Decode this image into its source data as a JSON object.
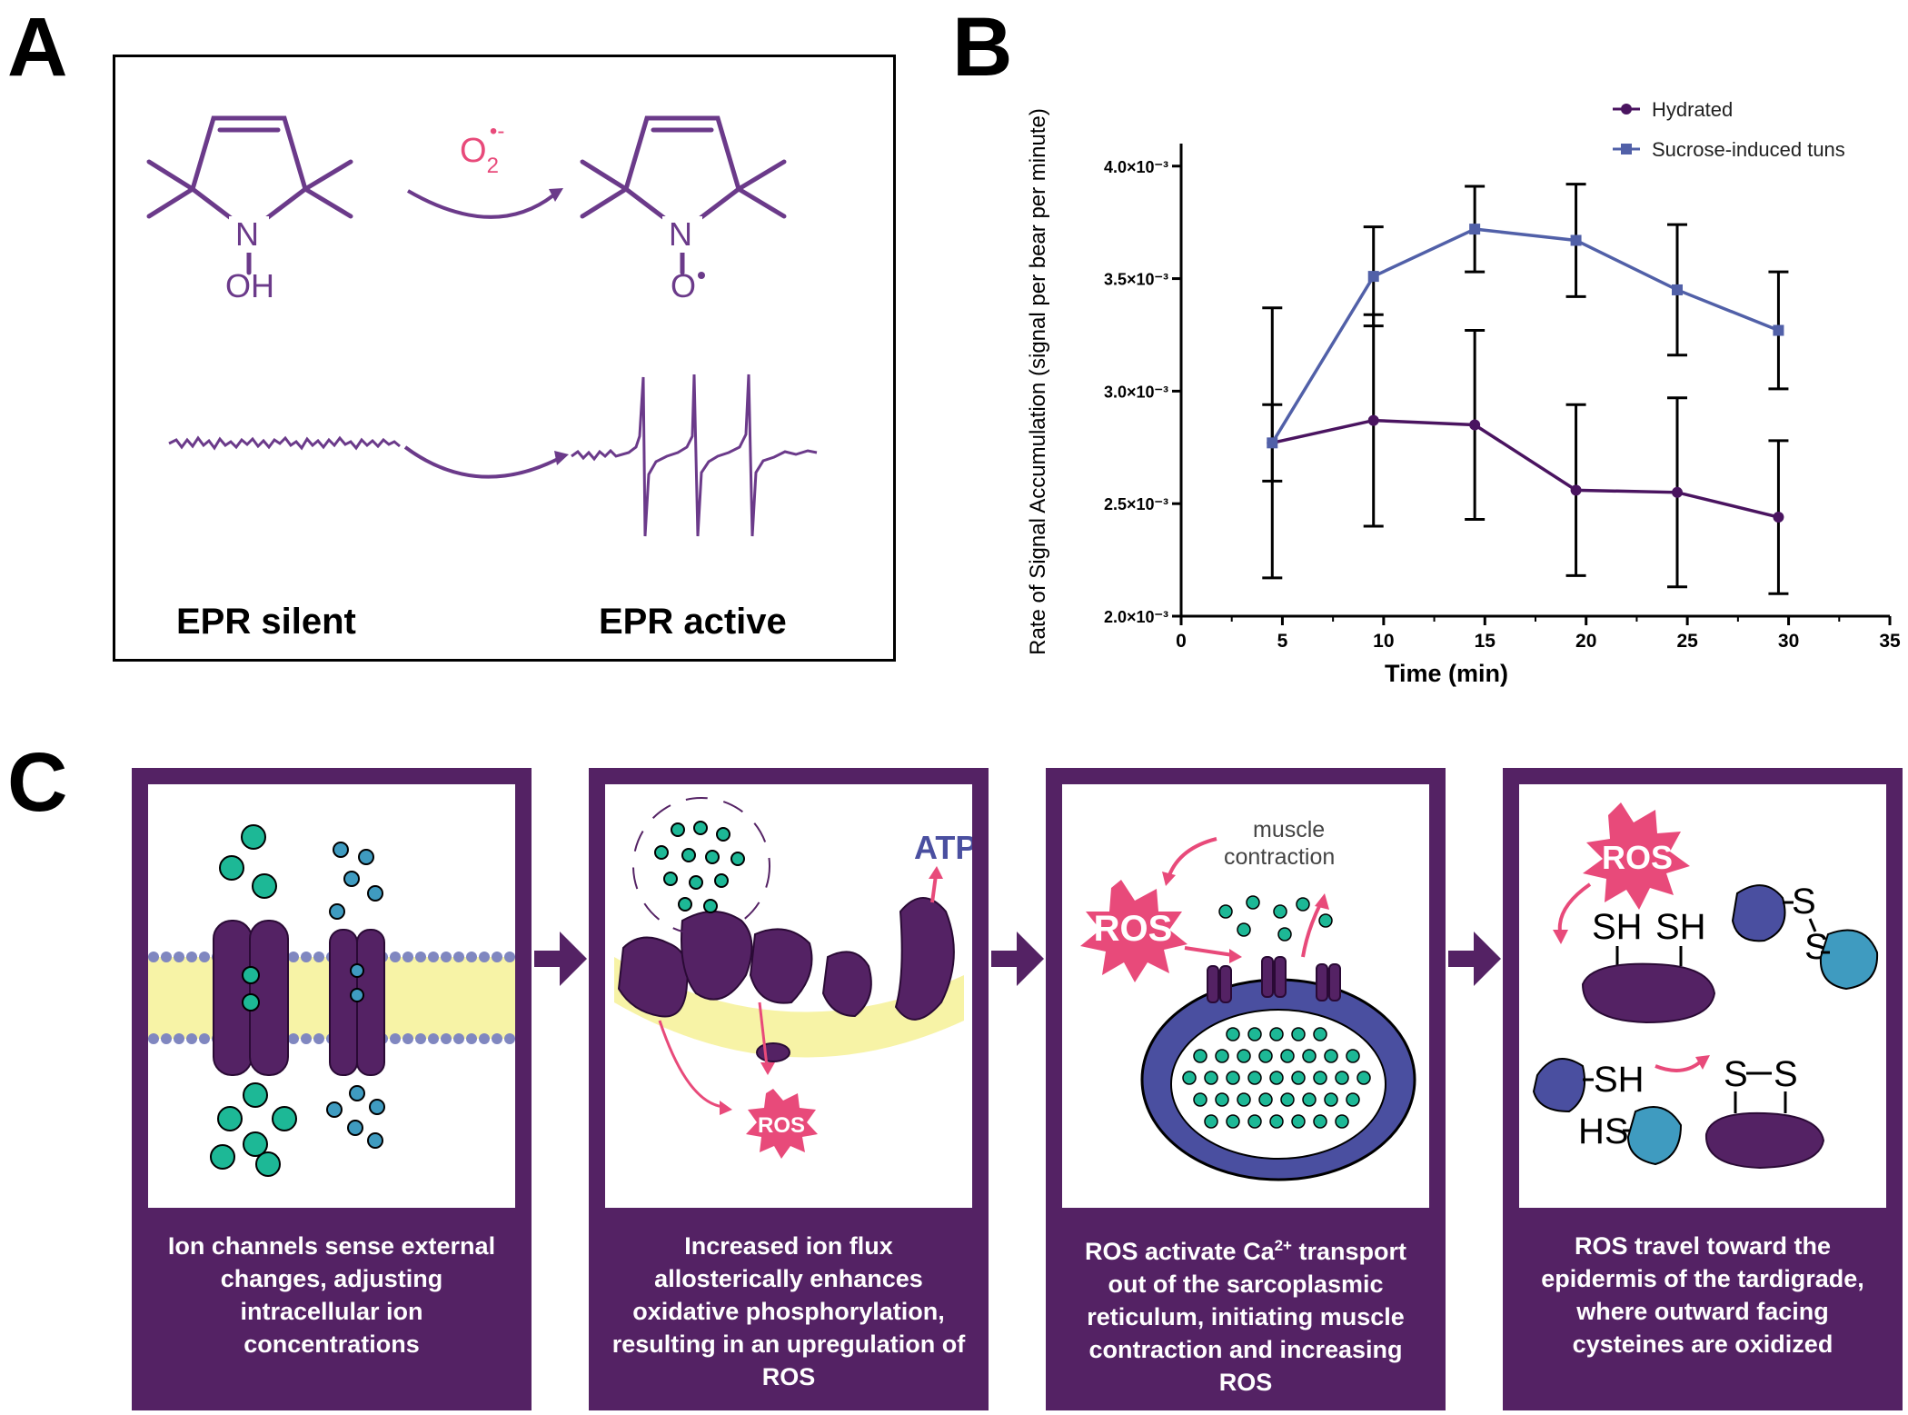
{
  "panels": {
    "a": "A",
    "b": "B",
    "c": "C"
  },
  "panel_a": {
    "oxidant_main": "O",
    "oxidant_sub": "2",
    "oxidant_sup": "•-",
    "left_n": "N",
    "left_oh": "OH",
    "right_n": "N",
    "right_o": "O",
    "label_silent": "EPR silent",
    "label_active": "EPR active"
  },
  "chart_data": {
    "type": "line",
    "title": "",
    "xlabel": "Time (min)",
    "ylabel": "Rate of Signal Accumulation (signal per bear per minute)",
    "xlim": [
      0,
      35
    ],
    "ylim": [
      0.002,
      0.0041
    ],
    "x_ticks": [
      "0",
      "5",
      "10",
      "15",
      "20",
      "25",
      "30",
      "35"
    ],
    "y_ticks": [
      "2.0×10⁻³",
      "2.5×10⁻³",
      "3.0×10⁻³",
      "3.5×10⁻³",
      "4.0×10⁻³"
    ],
    "legend_position": "top-right",
    "series": [
      {
        "name": "Hydrated",
        "color": "#4a1460",
        "marker": "circle",
        "x": [
          4.5,
          9.5,
          14.5,
          19.5,
          24.5,
          29.5
        ],
        "values": [
          0.00277,
          0.00287,
          0.00285,
          0.00256,
          0.00255,
          0.00244
        ],
        "error": [
          0.0006,
          0.00047,
          0.00042,
          0.00038,
          0.00042,
          0.00034
        ]
      },
      {
        "name": "Sucrose-induced tuns",
        "color": "#5160a8",
        "marker": "square",
        "x": [
          4.5,
          9.5,
          14.5,
          19.5,
          24.5,
          29.5
        ],
        "values": [
          0.00277,
          0.00351,
          0.00372,
          0.00367,
          0.00345,
          0.00327
        ],
        "error": [
          0.00017,
          0.00022,
          0.00019,
          0.00025,
          0.00029,
          0.00026
        ]
      }
    ]
  },
  "panel_c": {
    "ros": "ROS",
    "atp": "ATP",
    "muscle_contraction_1": "muscle",
    "muscle_contraction_2": "contraction",
    "sh": "SH",
    "hs": "HS",
    "s": "S",
    "steps": [
      {
        "caption": "Ion channels sense external changes, adjusting intracellular ion concentrations"
      },
      {
        "caption": "Increased ion flux allosterically enhances oxidative phosphorylation, resulting in an upregulation of ROS"
      },
      {
        "caption_pre": "ROS activate Ca",
        "caption_sup": "2+",
        "caption_post": " transport out of the sarcoplasmic reticulum, initiating muscle contraction and increasing ROS"
      },
      {
        "caption": "ROS travel toward the epidermis of the tardigrade, where outward facing cysteines are oxidized"
      }
    ]
  },
  "colors": {
    "purple_dark": "#542264",
    "purple_mol": "#6b3a8a",
    "teal": "#1db896",
    "blue_ion": "#3f9bc0",
    "ros_pink": "#e84a7a",
    "membrane_yellow": "#f7f3a6",
    "membrane_head": "#8087c0",
    "series_blue": "#5160a8"
  }
}
